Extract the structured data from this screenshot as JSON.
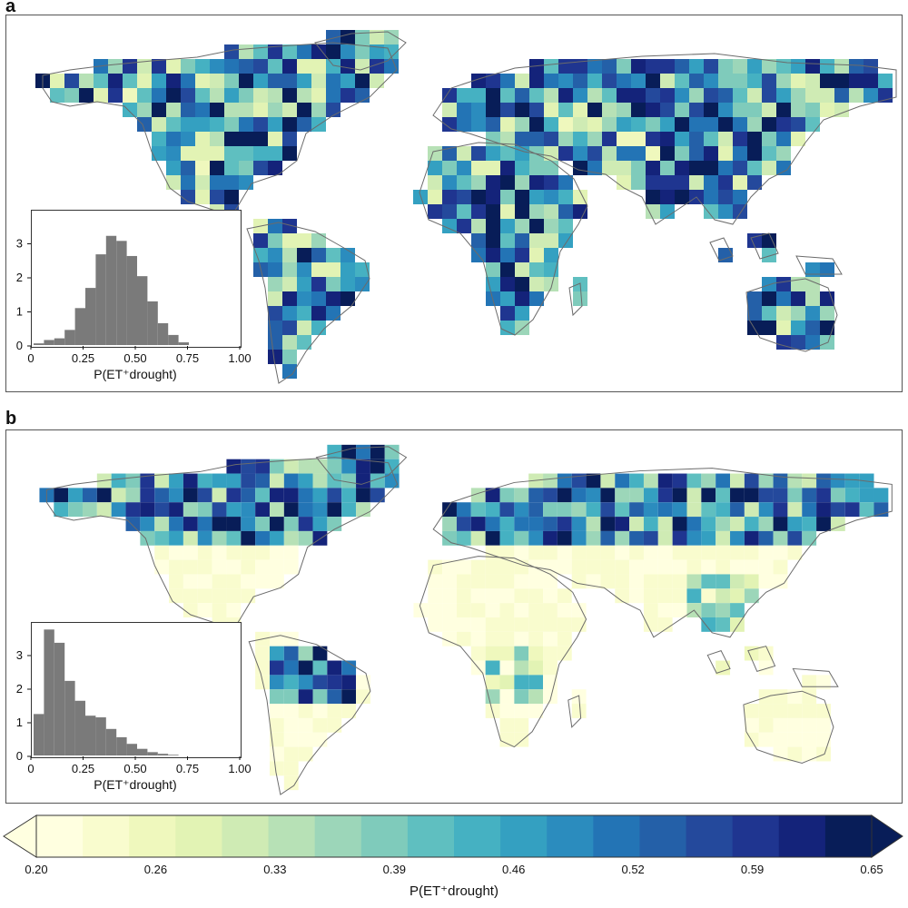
{
  "panels": {
    "a": {
      "label": "a",
      "hist": {
        "bins": [
          0.0,
          0.05,
          0.1,
          0.15,
          0.2,
          0.25,
          0.3,
          0.35,
          0.4,
          0.45,
          0.5,
          0.55,
          0.6,
          0.65,
          0.7,
          0.75,
          0.8,
          0.85,
          0.9,
          0.95,
          1.0
        ],
        "values": [
          0.05,
          0.15,
          0.2,
          0.45,
          1.1,
          1.7,
          2.7,
          3.25,
          3.1,
          2.65,
          2.05,
          1.3,
          0.65,
          0.3,
          0.08,
          0,
          0,
          0,
          0,
          0
        ]
      },
      "field": {
        "mean": 0.47,
        "spread": 0.2
      }
    },
    "b": {
      "label": "b",
      "hist": {
        "bins": [
          0.0,
          0.05,
          0.1,
          0.15,
          0.2,
          0.25,
          0.3,
          0.35,
          0.4,
          0.45,
          0.5,
          0.55,
          0.6,
          0.65,
          0.7,
          0.75,
          0.8,
          0.85,
          0.9,
          0.95,
          1.0
        ],
        "values": [
          1.25,
          3.8,
          3.4,
          2.25,
          1.65,
          1.2,
          1.15,
          0.8,
          0.55,
          0.35,
          0.2,
          0.1,
          0.05,
          0.02,
          0,
          0,
          0,
          0,
          0,
          0
        ]
      },
      "field": {
        "mean": 0.2,
        "spread": 0.05
      }
    }
  },
  "inset_axes": {
    "x_ticks": [
      "0",
      "0.25",
      "0.50",
      "0.75",
      "1.00"
    ],
    "y_ticks": [
      "0",
      "1",
      "2",
      "3"
    ],
    "xlabel": "P(ET⁺drought)"
  },
  "colorbar": {
    "ticks": [
      "0.20",
      "0.26",
      "0.33",
      "0.39",
      "0.46",
      "0.52",
      "0.59",
      "0.65"
    ],
    "label": "P(ET⁺drought)",
    "colors": [
      "#ffffe0",
      "#f9fcce",
      "#eff8bd",
      "#e2f3b4",
      "#cfebb4",
      "#b7e1b6",
      "#9cd6b9",
      "#7fcbbb",
      "#5fbfc0",
      "#45b1c2",
      "#34a0c1",
      "#2b8cbe",
      "#2374b5",
      "#2460a8",
      "#24499c",
      "#1f3590",
      "#14237a",
      "#081d58"
    ],
    "range": [
      0.2,
      0.65
    ]
  },
  "map_colors": {
    "land_low": "#ffffe0",
    "coastline": "#6b6b6b"
  }
}
